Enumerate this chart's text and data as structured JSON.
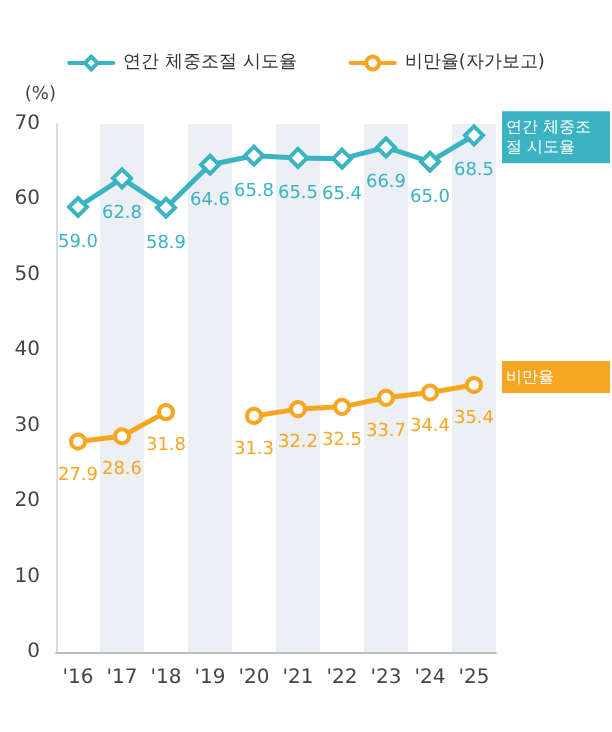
{
  "chart_data": {
    "type": "line",
    "ylabel": "(%)",
    "categories": [
      "'16",
      "'17",
      "'18",
      "'19",
      "'20",
      "'21",
      "'22",
      "'23",
      "'24",
      "'25"
    ],
    "series": [
      {
        "name": "연간 체중조절 시도율",
        "color": "#3bb3c3",
        "marker": "diamond",
        "values": [
          59.0,
          62.8,
          58.9,
          64.6,
          65.8,
          65.5,
          65.4,
          66.9,
          65.0,
          68.5
        ],
        "value_labels": [
          "59.0",
          "62.8",
          "58.9",
          "64.6",
          "65.8",
          "65.5",
          "65.4",
          "66.9",
          "65.0",
          "68.5"
        ]
      },
      {
        "name": "비만율(자가보고)",
        "color": "#f5a623",
        "marker": "circle",
        "values": [
          27.9,
          28.6,
          31.8,
          null,
          31.3,
          32.2,
          32.5,
          33.7,
          34.4,
          35.4
        ],
        "value_labels": [
          "27.9",
          "28.6",
          "31.8",
          null,
          "31.3",
          "32.2",
          "32.5",
          "33.7",
          "34.4",
          "35.4"
        ]
      }
    ],
    "annotations": [
      "연간 체중조절 시도율",
      "비만율"
    ],
    "ylim": [
      0,
      70
    ],
    "yticks": [
      0,
      10,
      20,
      30,
      40,
      50,
      60,
      70
    ],
    "legend": "top",
    "grid": false
  }
}
